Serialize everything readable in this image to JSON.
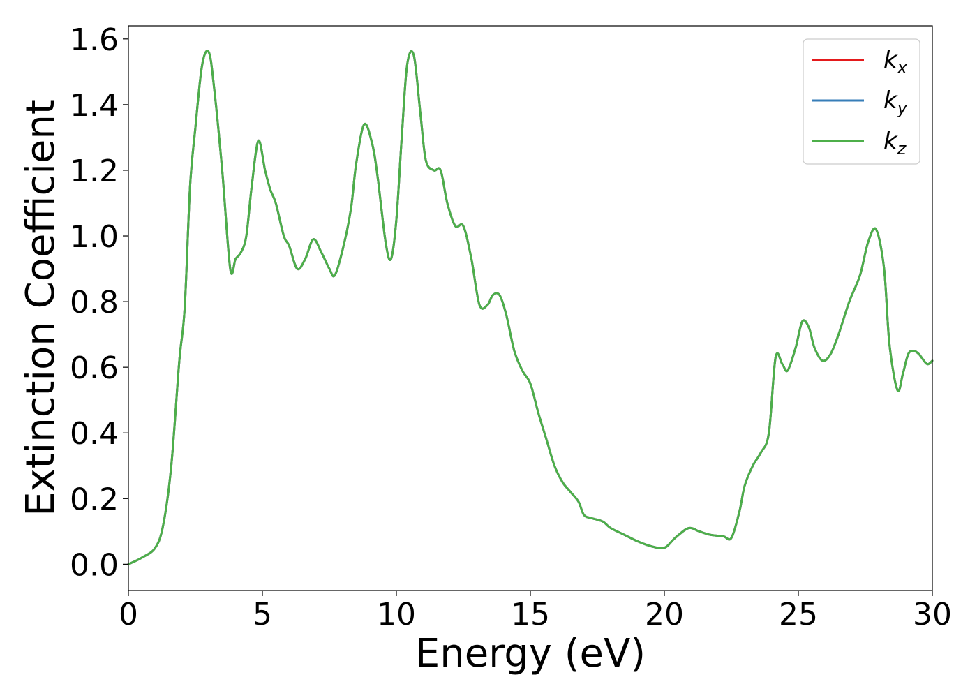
{
  "chart_data": {
    "type": "line",
    "title": "",
    "xlabel": "Energy (eV)",
    "ylabel": "Extinction Coefficient",
    "xlim": [
      0,
      30
    ],
    "ylim": [
      -0.08,
      1.64
    ],
    "xticks": [
      0,
      5,
      10,
      15,
      20,
      25,
      30
    ],
    "xtick_labels": [
      "0",
      "5",
      "10",
      "15",
      "20",
      "25",
      "30"
    ],
    "yticks": [
      0.0,
      0.2,
      0.4,
      0.6,
      0.8,
      1.0,
      1.2,
      1.4,
      1.6
    ],
    "ytick_labels": [
      "0.0",
      "0.2",
      "0.4",
      "0.6",
      "0.8",
      "1.0",
      "1.2",
      "1.4",
      "1.6"
    ],
    "grid": false,
    "legend_position": "top-right",
    "x": [
      0,
      0.5,
      1.0,
      1.3,
      1.6,
      1.9,
      2.1,
      2.3,
      2.5,
      2.75,
      3.0,
      3.2,
      3.5,
      3.8,
      4.0,
      4.2,
      4.4,
      4.6,
      4.85,
      5.1,
      5.3,
      5.5,
      5.8,
      6.0,
      6.3,
      6.6,
      6.9,
      7.2,
      7.5,
      7.7,
      8.0,
      8.3,
      8.5,
      8.8,
      9.1,
      9.3,
      9.6,
      9.8,
      10.0,
      10.2,
      10.4,
      10.65,
      10.9,
      11.1,
      11.4,
      11.65,
      11.9,
      12.2,
      12.5,
      12.8,
      13.1,
      13.4,
      13.6,
      13.85,
      14.1,
      14.4,
      14.7,
      15.0,
      15.3,
      15.6,
      15.9,
      16.2,
      16.5,
      16.8,
      17.0,
      17.3,
      17.7,
      18.0,
      18.5,
      19.0,
      19.5,
      20.0,
      20.4,
      20.9,
      21.3,
      21.7,
      22.2,
      22.5,
      22.8,
      23.0,
      23.3,
      23.6,
      23.9,
      24.15,
      24.4,
      24.6,
      24.9,
      25.15,
      25.4,
      25.6,
      25.9,
      26.2,
      26.5,
      26.9,
      27.3,
      27.6,
      27.9,
      28.2,
      28.4,
      28.7,
      28.9,
      29.1,
      29.3,
      29.5,
      29.8,
      30.0
    ],
    "series": [
      {
        "name": "k_x",
        "color": "#e41a1c",
        "values": [
          0.0,
          0.02,
          0.05,
          0.12,
          0.3,
          0.62,
          0.78,
          1.15,
          1.33,
          1.52,
          1.56,
          1.45,
          1.2,
          0.9,
          0.93,
          0.95,
          1.0,
          1.15,
          1.29,
          1.2,
          1.14,
          1.1,
          1.0,
          0.97,
          0.9,
          0.93,
          0.99,
          0.95,
          0.9,
          0.88,
          0.96,
          1.08,
          1.22,
          1.34,
          1.28,
          1.18,
          0.98,
          0.93,
          1.05,
          1.3,
          1.52,
          1.55,
          1.37,
          1.23,
          1.2,
          1.2,
          1.1,
          1.03,
          1.03,
          0.93,
          0.79,
          0.79,
          0.82,
          0.82,
          0.76,
          0.65,
          0.59,
          0.55,
          0.46,
          0.38,
          0.3,
          0.25,
          0.22,
          0.19,
          0.15,
          0.14,
          0.13,
          0.11,
          0.09,
          0.07,
          0.055,
          0.05,
          0.08,
          0.11,
          0.1,
          0.09,
          0.085,
          0.08,
          0.16,
          0.24,
          0.3,
          0.34,
          0.4,
          0.63,
          0.61,
          0.59,
          0.66,
          0.74,
          0.72,
          0.66,
          0.62,
          0.64,
          0.7,
          0.8,
          0.88,
          0.98,
          1.02,
          0.9,
          0.67,
          0.53,
          0.58,
          0.64,
          0.65,
          0.64,
          0.61,
          0.62
        ]
      },
      {
        "name": "k_y",
        "color": "#377eb8",
        "values": [
          0.0,
          0.02,
          0.05,
          0.12,
          0.3,
          0.62,
          0.78,
          1.15,
          1.33,
          1.52,
          1.56,
          1.45,
          1.2,
          0.9,
          0.93,
          0.95,
          1.0,
          1.15,
          1.29,
          1.2,
          1.14,
          1.1,
          1.0,
          0.97,
          0.9,
          0.93,
          0.99,
          0.95,
          0.9,
          0.88,
          0.96,
          1.08,
          1.22,
          1.34,
          1.28,
          1.18,
          0.98,
          0.93,
          1.05,
          1.3,
          1.52,
          1.55,
          1.37,
          1.23,
          1.2,
          1.2,
          1.1,
          1.03,
          1.03,
          0.93,
          0.79,
          0.79,
          0.82,
          0.82,
          0.76,
          0.65,
          0.59,
          0.55,
          0.46,
          0.38,
          0.3,
          0.25,
          0.22,
          0.19,
          0.15,
          0.14,
          0.13,
          0.11,
          0.09,
          0.07,
          0.055,
          0.05,
          0.08,
          0.11,
          0.1,
          0.09,
          0.085,
          0.08,
          0.16,
          0.24,
          0.3,
          0.34,
          0.4,
          0.63,
          0.61,
          0.59,
          0.66,
          0.74,
          0.72,
          0.66,
          0.62,
          0.64,
          0.7,
          0.8,
          0.88,
          0.98,
          1.02,
          0.9,
          0.67,
          0.53,
          0.58,
          0.64,
          0.65,
          0.64,
          0.61,
          0.62
        ]
      },
      {
        "name": "k_z",
        "color": "#4daf4a",
        "values": [
          0.0,
          0.02,
          0.05,
          0.12,
          0.3,
          0.62,
          0.78,
          1.15,
          1.33,
          1.52,
          1.56,
          1.45,
          1.2,
          0.9,
          0.93,
          0.95,
          1.0,
          1.15,
          1.29,
          1.2,
          1.14,
          1.1,
          1.0,
          0.97,
          0.9,
          0.93,
          0.99,
          0.95,
          0.9,
          0.88,
          0.96,
          1.08,
          1.22,
          1.34,
          1.28,
          1.18,
          0.98,
          0.93,
          1.05,
          1.3,
          1.52,
          1.55,
          1.37,
          1.23,
          1.2,
          1.2,
          1.1,
          1.03,
          1.03,
          0.93,
          0.79,
          0.79,
          0.82,
          0.82,
          0.76,
          0.65,
          0.59,
          0.55,
          0.46,
          0.38,
          0.3,
          0.25,
          0.22,
          0.19,
          0.15,
          0.14,
          0.13,
          0.11,
          0.09,
          0.07,
          0.055,
          0.05,
          0.08,
          0.11,
          0.1,
          0.09,
          0.085,
          0.08,
          0.16,
          0.24,
          0.3,
          0.34,
          0.4,
          0.63,
          0.61,
          0.59,
          0.66,
          0.74,
          0.72,
          0.66,
          0.62,
          0.64,
          0.7,
          0.8,
          0.88,
          0.98,
          1.02,
          0.9,
          0.67,
          0.53,
          0.58,
          0.64,
          0.65,
          0.64,
          0.61,
          0.62
        ]
      }
    ],
    "legend": [
      {
        "base": "k",
        "sub": "x",
        "color": "#e41a1c"
      },
      {
        "base": "k",
        "sub": "y",
        "color": "#377eb8"
      },
      {
        "base": "k",
        "sub": "z",
        "color": "#4daf4a"
      }
    ]
  }
}
